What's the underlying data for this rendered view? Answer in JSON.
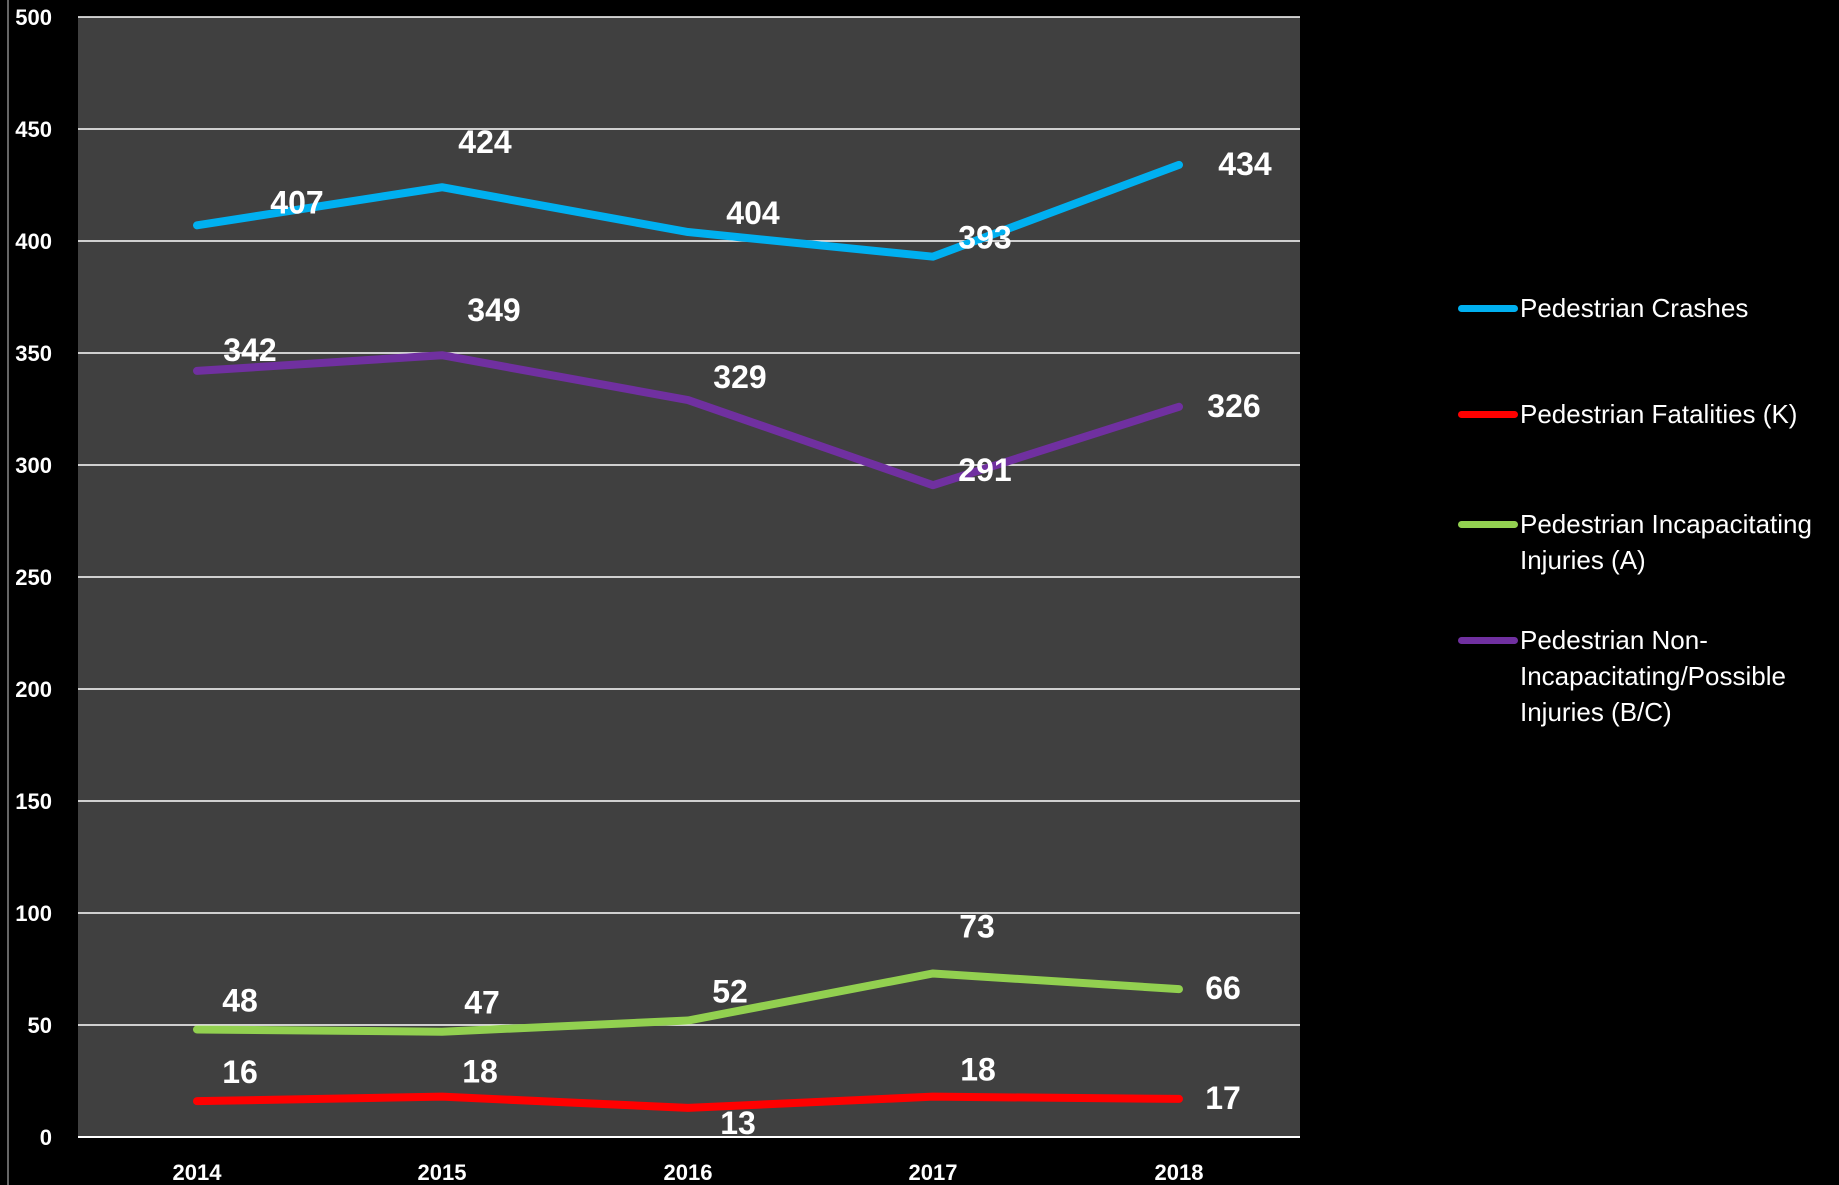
{
  "chart_data": {
    "type": "line",
    "categories": [
      "2014",
      "2015",
      "2016",
      "2017",
      "2018"
    ],
    "ylim": [
      0,
      500
    ],
    "yticks": [
      0,
      50,
      100,
      150,
      200,
      250,
      300,
      350,
      400,
      450,
      500
    ],
    "grid": true,
    "legend_position": "right",
    "colors": {
      "plot_background": "#404040",
      "page_background": "#000000",
      "gridline": "#ffffff",
      "text": "#ffffff"
    },
    "series": [
      {
        "name": "Pedestrian Crashes",
        "color": "#00b0f0",
        "values": [
          407,
          424,
          404,
          393,
          434
        ]
      },
      {
        "name": "Pedestrian Fatalities (K)",
        "color": "#ff0000",
        "values": [
          16,
          18,
          13,
          18,
          17
        ]
      },
      {
        "name": "Pedestrian Incapacitating Injuries (A)",
        "color": "#92d050",
        "values": [
          48,
          47,
          52,
          73,
          66
        ]
      },
      {
        "name": "Pedestrian Non-Incapacitating/Possible Injuries (B/C)",
        "color": "#7030a0",
        "values": [
          342,
          349,
          329,
          291,
          326
        ]
      }
    ]
  },
  "legend": [
    {
      "lines": [
        "Pedestrian Crashes"
      ]
    },
    {
      "lines": [
        "Pedestrian Fatalities (K)"
      ]
    },
    {
      "lines": [
        "Pedestrian Incapacitating",
        "Injuries (A)"
      ]
    },
    {
      "lines": [
        "Pedestrian Non-",
        "Incapacitating/Possible",
        "Injuries (B/C)"
      ]
    }
  ]
}
